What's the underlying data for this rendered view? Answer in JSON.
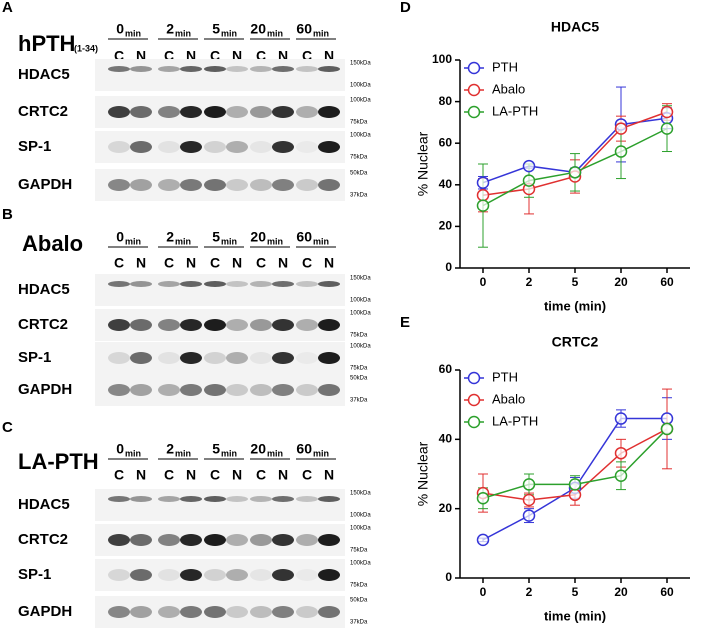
{
  "blots": [
    {
      "letter": "A",
      "treatment": "hPTH",
      "treatment_sub": "(1-34)",
      "times": [
        "0",
        "2",
        "5",
        "20",
        "60"
      ],
      "time_unit": "min",
      "lanes": [
        "C",
        "N"
      ],
      "rows": [
        {
          "label": "HDAC5",
          "markers": [
            "150kDa",
            "100kDa"
          ]
        },
        {
          "label": "CRTC2",
          "markers": [
            "100kDa",
            "75kDa"
          ]
        },
        {
          "label": "SP-1",
          "markers": [
            "100kDa",
            "75kDa"
          ]
        },
        {
          "label": "GAPDH",
          "markers": [
            "50kDa",
            "37kDa"
          ]
        }
      ]
    },
    {
      "letter": "B",
      "treatment": "Abalo",
      "times": [
        "0",
        "2",
        "5",
        "20",
        "60"
      ],
      "time_unit": "min",
      "lanes": [
        "C",
        "N"
      ],
      "rows": [
        {
          "label": "HDAC5",
          "markers": [
            "150kDa",
            "100kDa"
          ]
        },
        {
          "label": "CRTC2",
          "markers": [
            "100kDa",
            "75kDa"
          ]
        },
        {
          "label": "SP-1",
          "markers": [
            "100kDa",
            "75kDa"
          ]
        },
        {
          "label": "GAPDH",
          "markers": [
            "50kDa",
            "37kDa"
          ]
        }
      ]
    },
    {
      "letter": "C",
      "treatment": "LA-PTH",
      "times": [
        "0",
        "2",
        "5",
        "20",
        "60"
      ],
      "time_unit": "min",
      "lanes": [
        "C",
        "N"
      ],
      "rows": [
        {
          "label": "HDAC5",
          "markers": [
            "150kDa",
            "100kDa"
          ]
        },
        {
          "label": "CRTC2",
          "markers": [
            "100kDa",
            "75kDa"
          ]
        },
        {
          "label": "SP-1",
          "markers": [
            "100kDa",
            "75kDa"
          ]
        },
        {
          "label": "GAPDH",
          "markers": [
            "50kDa",
            "37kDa"
          ]
        }
      ]
    }
  ],
  "chart_data": [
    {
      "type": "line",
      "letter": "D",
      "title": "HDAC5",
      "x_label": "time (min)",
      "y_label": "% Nuclear",
      "categories": [
        "0",
        "2",
        "5",
        "20",
        "60"
      ],
      "ylim": [
        0,
        100
      ],
      "yticks": [
        0,
        20,
        40,
        60,
        80,
        100
      ],
      "legend": "upper left",
      "series": [
        {
          "name": "PTH",
          "color": "#3535d8",
          "values": [
            41,
            49,
            46,
            69,
            72
          ],
          "errors": [
            3,
            1,
            2,
            18,
            5
          ]
        },
        {
          "name": "Abalo",
          "color": "#e03030",
          "values": [
            35,
            38,
            44,
            67,
            75
          ],
          "errors": [
            8,
            12,
            8,
            6,
            4
          ]
        },
        {
          "name": "LA-PTH",
          "color": "#2ca02c",
          "values": [
            30,
            42,
            46,
            56,
            67
          ],
          "errors": [
            20,
            8,
            9,
            13,
            11
          ]
        }
      ]
    },
    {
      "type": "line",
      "letter": "E",
      "title": "CRTC2",
      "x_label": "time (min)",
      "y_label": "% Nuclear",
      "categories": [
        "0",
        "2",
        "5",
        "20",
        "60"
      ],
      "ylim": [
        0,
        60
      ],
      "yticks": [
        0,
        20,
        40,
        60
      ],
      "legend": "upper left",
      "series": [
        {
          "name": "PTH",
          "color": "#3535d8",
          "values": [
            11,
            18,
            26,
            46,
            46
          ],
          "errors": [
            0.5,
            2,
            3,
            2.5,
            6
          ]
        },
        {
          "name": "Abalo",
          "color": "#e03030",
          "values": [
            24.5,
            22.5,
            24,
            36,
            43
          ],
          "errors": [
            5.5,
            2,
            3,
            4,
            11.5
          ]
        },
        {
          "name": "LA-PTH",
          "color": "#2ca02c",
          "values": [
            23,
            27,
            27,
            29.5,
            43
          ],
          "errors": [
            3,
            3,
            2.5,
            4,
            1
          ]
        }
      ]
    }
  ]
}
